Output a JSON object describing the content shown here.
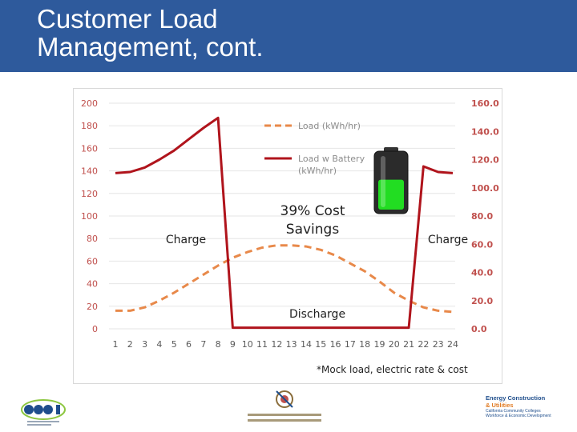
{
  "slide": {
    "title": "Customer Load\nManagement, cont.",
    "footnote": "*Mock load, electric rate & cost"
  },
  "colors": {
    "header_bg": "#2e5a9c",
    "left_axis_text": "#c0504d",
    "right_axis_text": "#c0504d",
    "load_line": "#e8894a",
    "load_battery_line": "#b0141c",
    "battery_fill": "#22dd22",
    "gridline": "#e6e6e6"
  },
  "chart_data": {
    "type": "line",
    "x": [
      1,
      2,
      3,
      4,
      5,
      6,
      7,
      8,
      9,
      10,
      11,
      12,
      13,
      14,
      15,
      16,
      17,
      18,
      19,
      20,
      21,
      22,
      23,
      24
    ],
    "x_tick_labels": [
      "1",
      "2",
      "3",
      "4",
      "5",
      "6",
      "7",
      "8",
      "9",
      "10",
      "11",
      "12",
      "13",
      "14",
      "15",
      "16",
      "17",
      "18",
      "19",
      "20",
      "21",
      "22",
      "23",
      "24"
    ],
    "left_axis": {
      "ylim": [
        0,
        200
      ],
      "ticks": [
        "0",
        "20",
        "40",
        "60",
        "80",
        "100",
        "120",
        "140",
        "160",
        "180",
        "200"
      ]
    },
    "right_axis": {
      "ylim": [
        0,
        160
      ],
      "ticks": [
        "0.0",
        "20.0",
        "40.0",
        "60.0",
        "80.0",
        "100.0",
        "120.0",
        "140.0",
        "160.0"
      ]
    },
    "grid": true,
    "legend_position": "top-center",
    "series": [
      {
        "name": "Load (kWh/hr)",
        "axis": "left",
        "style": "dashed",
        "values": [
          16,
          16,
          19,
          25,
          32,
          40,
          48,
          56,
          63,
          68,
          72,
          74,
          74,
          73,
          70,
          65,
          58,
          51,
          42,
          32,
          25,
          19,
          16,
          15
        ]
      },
      {
        "name": "Load w Battery (kWh/hr)",
        "axis": "left",
        "style": "solid",
        "values": [
          138,
          139,
          143,
          150,
          158,
          168,
          178,
          187,
          1,
          1,
          1,
          1,
          1,
          1,
          1,
          1,
          1,
          1,
          1,
          1,
          1,
          144,
          139,
          138
        ]
      }
    ],
    "annotations": [
      {
        "text": "Charge",
        "near_x": 5
      },
      {
        "text": "39% Cost Savings",
        "near_x": 13
      },
      {
        "text": "Charge",
        "near_x": 22
      },
      {
        "text": "Discharge",
        "near_x": 14
      }
    ],
    "battery_icon": {
      "level": 0.55
    }
  }
}
